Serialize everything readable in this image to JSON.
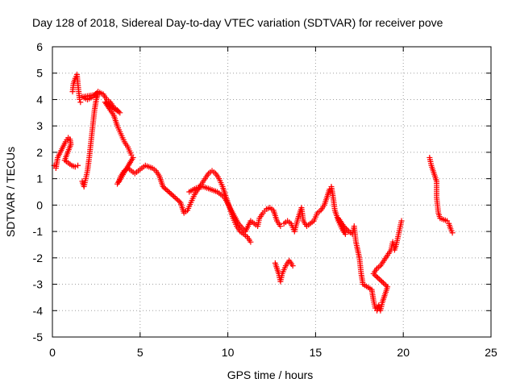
{
  "chart_data": {
    "type": "scatter",
    "title": "Day 128 of 2018, Sidereal Day-to-day VTEC variation (SDTVAR) for receiver pove",
    "xlabel": "GPS time / hours",
    "ylabel": "SDTVAR / TECUs",
    "xlim": [
      0,
      25
    ],
    "ylim": [
      -5,
      6
    ],
    "xticks": [
      "0",
      "5",
      "10",
      "15",
      "20",
      "25"
    ],
    "yticks": [
      "-5",
      "-4",
      "-3",
      "-2",
      "-1",
      "0",
      "1",
      "2",
      "3",
      "4",
      "5",
      "6"
    ],
    "grid": true,
    "marker": "plus",
    "color": "#ff0000",
    "series": [
      {
        "points": [
          [
            0.1,
            1.5
          ],
          [
            0.2,
            1.4
          ],
          [
            0.3,
            1.8
          ],
          [
            0.45,
            2.0
          ],
          [
            0.6,
            2.2
          ],
          [
            0.75,
            2.4
          ],
          [
            0.9,
            2.55
          ],
          [
            1.0,
            2.5
          ],
          [
            1.05,
            2.3
          ],
          [
            0.7,
            1.7
          ],
          [
            0.9,
            1.6
          ],
          [
            1.1,
            1.5
          ],
          [
            1.3,
            1.45
          ],
          [
            1.45,
            1.5
          ],
          [
            1.15,
            4.3
          ],
          [
            1.2,
            4.6
          ],
          [
            1.3,
            4.8
          ],
          [
            1.4,
            4.95
          ],
          [
            1.45,
            4.6
          ],
          [
            1.5,
            4.3
          ],
          [
            1.55,
            4.0
          ],
          [
            1.6,
            3.9
          ],
          [
            1.7,
            0.9
          ],
          [
            1.8,
            0.7
          ],
          [
            1.9,
            1.0
          ],
          [
            2.0,
            1.3
          ],
          [
            2.1,
            1.8
          ],
          [
            2.2,
            2.4
          ],
          [
            2.3,
            3.0
          ],
          [
            2.4,
            3.6
          ],
          [
            2.5,
            4.0
          ],
          [
            2.6,
            4.2
          ],
          [
            1.7,
            4.1
          ],
          [
            2.0,
            4.0
          ],
          [
            2.3,
            4.1
          ],
          [
            2.6,
            4.3
          ],
          [
            2.9,
            4.2
          ],
          [
            3.1,
            4.0
          ],
          [
            3.3,
            3.9
          ],
          [
            3.5,
            3.7
          ],
          [
            3.7,
            3.6
          ],
          [
            3.85,
            3.5
          ],
          [
            3.0,
            3.9
          ],
          [
            3.3,
            3.6
          ],
          [
            3.5,
            3.4
          ],
          [
            3.7,
            3.0
          ],
          [
            3.9,
            2.7
          ],
          [
            4.1,
            2.4
          ],
          [
            4.3,
            2.2
          ],
          [
            4.5,
            1.9
          ],
          [
            4.6,
            1.8
          ],
          [
            3.7,
            0.8
          ],
          [
            3.8,
            0.9
          ],
          [
            3.9,
            1.1
          ],
          [
            4.1,
            1.3
          ],
          [
            4.3,
            1.4
          ],
          [
            4.5,
            1.3
          ],
          [
            4.7,
            1.2
          ],
          [
            4.9,
            1.3
          ],
          [
            5.1,
            1.4
          ],
          [
            5.3,
            1.5
          ],
          [
            5.5,
            1.45
          ],
          [
            5.7,
            1.4
          ],
          [
            5.9,
            1.3
          ],
          [
            6.1,
            1.1
          ],
          [
            6.2,
            0.9
          ],
          [
            6.3,
            0.7
          ],
          [
            7.3,
            0.1
          ],
          [
            7.4,
            -0.1
          ],
          [
            7.5,
            -0.3
          ],
          [
            7.7,
            -0.2
          ],
          [
            7.9,
            0.1
          ],
          [
            8.1,
            0.4
          ],
          [
            8.3,
            0.6
          ],
          [
            8.5,
            0.8
          ],
          [
            8.7,
            1.0
          ],
          [
            8.9,
            1.2
          ],
          [
            9.1,
            1.3
          ],
          [
            9.3,
            1.2
          ],
          [
            9.5,
            1.0
          ],
          [
            9.7,
            0.7
          ],
          [
            9.9,
            0.3
          ],
          [
            10.1,
            -0.1
          ],
          [
            10.3,
            -0.5
          ],
          [
            10.5,
            -0.8
          ],
          [
            10.7,
            -1.0
          ],
          [
            10.9,
            -1.1
          ],
          [
            11.1,
            -1.2
          ],
          [
            11.3,
            -1.4
          ],
          [
            7.8,
            0.5
          ],
          [
            8.2,
            0.65
          ],
          [
            8.6,
            0.7
          ],
          [
            9.0,
            0.6
          ],
          [
            9.4,
            0.5
          ],
          [
            9.8,
            0.3
          ],
          [
            10.2,
            -0.2
          ],
          [
            10.6,
            -0.7
          ],
          [
            11.0,
            -1.0
          ],
          [
            11.3,
            -0.6
          ],
          [
            11.5,
            -0.7
          ],
          [
            11.7,
            -0.8
          ],
          [
            11.8,
            -0.5
          ],
          [
            12.0,
            -0.3
          ],
          [
            12.2,
            -0.15
          ],
          [
            12.4,
            -0.1
          ],
          [
            12.6,
            -0.2
          ],
          [
            12.8,
            -0.6
          ],
          [
            13.0,
            -0.8
          ],
          [
            12.7,
            -2.2
          ],
          [
            12.9,
            -2.6
          ],
          [
            13.0,
            -2.9
          ],
          [
            13.1,
            -2.6
          ],
          [
            13.3,
            -2.3
          ],
          [
            13.5,
            -2.1
          ],
          [
            13.7,
            -2.3
          ],
          [
            13.2,
            -0.7
          ],
          [
            13.4,
            -0.6
          ],
          [
            13.6,
            -0.7
          ],
          [
            13.8,
            -1.0
          ],
          [
            14.0,
            -0.5
          ],
          [
            14.2,
            -0.1
          ],
          [
            14.3,
            -0.6
          ],
          [
            14.5,
            -0.8
          ],
          [
            14.7,
            -0.7
          ],
          [
            14.9,
            -0.6
          ],
          [
            15.1,
            -0.3
          ],
          [
            15.3,
            -0.2
          ],
          [
            15.5,
            0.0
          ],
          [
            15.7,
            0.4
          ],
          [
            15.8,
            0.6
          ],
          [
            15.9,
            0.7
          ],
          [
            16.0,
            0.3
          ],
          [
            16.1,
            -0.2
          ],
          [
            16.3,
            -0.6
          ],
          [
            16.5,
            -0.9
          ],
          [
            16.7,
            -1.1
          ],
          [
            16.3,
            -0.5
          ],
          [
            16.6,
            -0.8
          ],
          [
            16.9,
            -1.0
          ],
          [
            17.1,
            -1.1
          ],
          [
            17.2,
            -0.8
          ],
          [
            17.3,
            -1.4
          ],
          [
            17.5,
            -2.0
          ],
          [
            17.6,
            -2.6
          ],
          [
            17.7,
            -3.0
          ],
          [
            18.2,
            -3.2
          ],
          [
            18.3,
            -3.6
          ],
          [
            18.4,
            -3.9
          ],
          [
            18.5,
            -4.0
          ],
          [
            18.6,
            -3.8
          ],
          [
            18.7,
            -4.0
          ],
          [
            18.8,
            -3.7
          ],
          [
            18.9,
            -3.5
          ],
          [
            19.0,
            -3.3
          ],
          [
            19.1,
            -3.1
          ],
          [
            18.3,
            -2.6
          ],
          [
            18.5,
            -2.4
          ],
          [
            18.7,
            -2.3
          ],
          [
            18.9,
            -2.1
          ],
          [
            19.1,
            -1.9
          ],
          [
            19.3,
            -1.7
          ],
          [
            19.4,
            -1.4
          ],
          [
            19.5,
            -1.7
          ],
          [
            19.6,
            -1.5
          ],
          [
            19.7,
            -1.2
          ],
          [
            19.8,
            -0.9
          ],
          [
            19.9,
            -0.6
          ],
          [
            21.5,
            1.8
          ],
          [
            21.6,
            1.5
          ],
          [
            21.7,
            1.3
          ],
          [
            21.8,
            1.1
          ],
          [
            21.9,
            0.9
          ],
          [
            21.9,
            0.3
          ],
          [
            22.0,
            -0.3
          ],
          [
            22.1,
            -0.5
          ],
          [
            22.3,
            -0.55
          ],
          [
            22.5,
            -0.6
          ],
          [
            22.6,
            -0.7
          ],
          [
            22.7,
            -0.9
          ],
          [
            22.8,
            -1.05
          ]
        ]
      }
    ]
  }
}
